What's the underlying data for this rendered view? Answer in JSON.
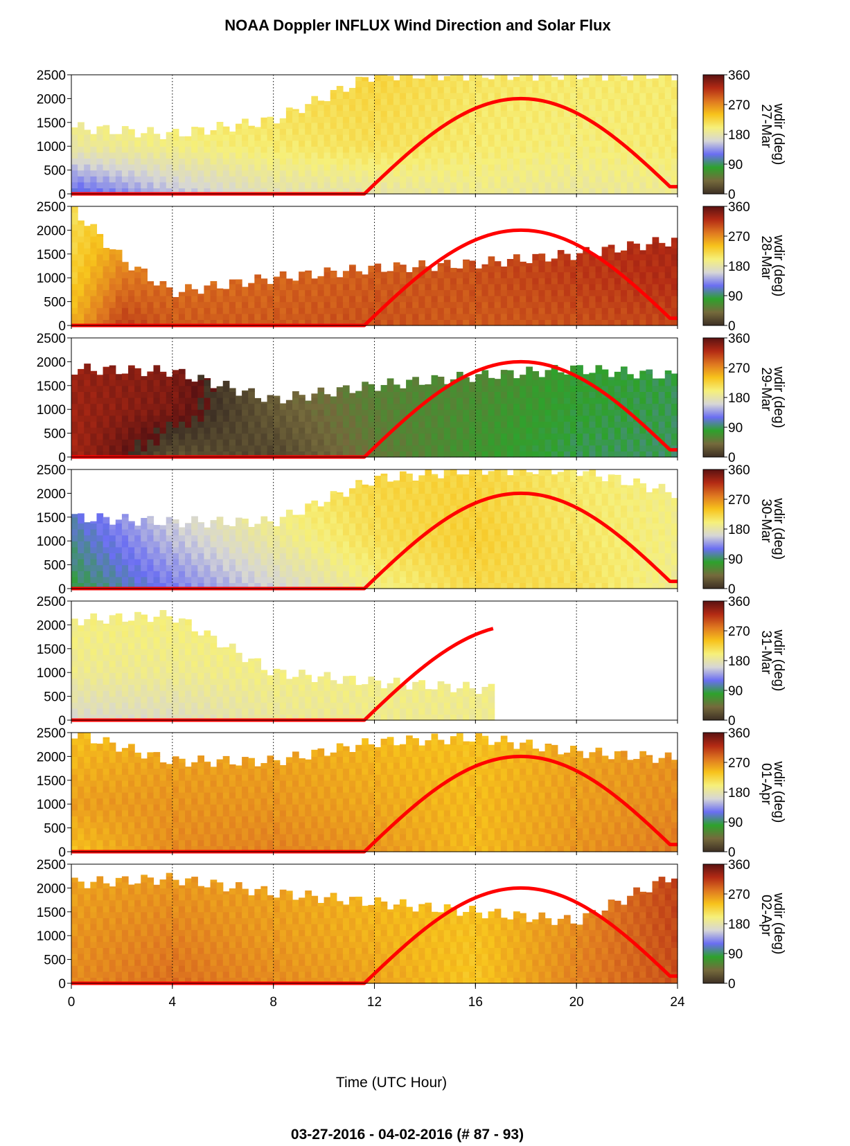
{
  "figure": {
    "title": "NOAA Doppler INFLUX Wind Direction and Solar Flux",
    "footer": "03-27-2016 - 04-02-2016   (# 87 - 93)"
  },
  "chart_data": {
    "type": "heatmap",
    "title": "NOAA Doppler INFLUX Wind Direction and Solar Flux",
    "xlabel": "Time (UTC Hour)",
    "xlim": [
      0,
      24
    ],
    "xticks": [
      "0",
      "4",
      "8",
      "12",
      "16",
      "20",
      "24"
    ],
    "ylim": [
      0,
      2500
    ],
    "yticks": [
      "0",
      "500",
      "1000",
      "1500",
      "2000",
      "2500"
    ],
    "colorbar": {
      "label": "wdir (deg)",
      "ticks": [
        "0",
        "90",
        "180",
        "270",
        "360"
      ],
      "range": [
        0,
        360
      ],
      "stops": [
        "#3d2f24",
        "#756a3c",
        "#2ea22c",
        "#6a6ef2",
        "#d6d6d6",
        "#f6f07a",
        "#f7c31c",
        "#df7820",
        "#b32a14",
        "#5a1212"
      ]
    },
    "solar_flux_color": "#ff0000",
    "solar_flux_curve": {
      "rise_hour": 11.6,
      "peak_hour": 17.8,
      "set_hour": 24.0,
      "peak_height": 2000
    },
    "panels": [
      {
        "date": "27-Mar",
        "max_hour": 24,
        "wdir_profile": [
          {
            "hour": 0,
            "low": 110,
            "mid": 185,
            "top": 210,
            "top_height": 1400
          },
          {
            "hour": 4,
            "low": 150,
            "mid": 195,
            "top": 215,
            "top_height": 1250
          },
          {
            "hour": 8,
            "low": 175,
            "mid": 205,
            "top": 220,
            "top_height": 1550
          },
          {
            "hour": 12,
            "low": 180,
            "mid": 215,
            "top": 225,
            "top_height": 2500
          },
          {
            "hour": 16,
            "low": 190,
            "mid": 205,
            "top": 210,
            "top_height": 2500
          },
          {
            "hour": 20,
            "low": 185,
            "mid": 200,
            "top": 205,
            "top_height": 2500
          },
          {
            "hour": 24,
            "low": 190,
            "mid": 205,
            "top": 205,
            "top_height": 2500
          }
        ]
      },
      {
        "date": "28-Mar",
        "max_hour": 24,
        "wdir_profile": [
          {
            "hour": 0,
            "low": 250,
            "mid": 230,
            "top": 215,
            "top_height": 2500
          },
          {
            "hour": 2,
            "low": 310,
            "mid": 280,
            "top": 235,
            "top_height": 1400
          },
          {
            "hour": 4,
            "low": 295,
            "mid": 285,
            "top": 280,
            "top_height": 700
          },
          {
            "hour": 8,
            "low": 295,
            "mid": 290,
            "top": 285,
            "top_height": 1000
          },
          {
            "hour": 12,
            "low": 300,
            "mid": 295,
            "top": 290,
            "top_height": 1200
          },
          {
            "hour": 16,
            "low": 295,
            "mid": 300,
            "top": 305,
            "top_height": 1300
          },
          {
            "hour": 20,
            "low": 300,
            "mid": 310,
            "top": 320,
            "top_height": 1500
          },
          {
            "hour": 24,
            "low": 305,
            "mid": 320,
            "top": 330,
            "top_height": 1800
          }
        ]
      },
      {
        "date": "29-Mar",
        "max_hour": 24,
        "wdir_profile": [
          {
            "hour": 0,
            "low": 325,
            "mid": 330,
            "top": 335,
            "top_height": 1850
          },
          {
            "hour": 4,
            "low": 25,
            "mid": 345,
            "top": 340,
            "top_height": 1800
          },
          {
            "hour": 8,
            "low": 15,
            "mid": 30,
            "top": 45,
            "top_height": 1200
          },
          {
            "hour": 12,
            "low": 50,
            "mid": 55,
            "top": 60,
            "top_height": 1500
          },
          {
            "hour": 16,
            "low": 70,
            "mid": 65,
            "top": 55,
            "top_height": 1700
          },
          {
            "hour": 20,
            "low": 88,
            "mid": 80,
            "top": 75,
            "top_height": 1850
          },
          {
            "hour": 24,
            "low": 90,
            "mid": 88,
            "top": 85,
            "top_height": 1700
          }
        ]
      },
      {
        "date": "30-Mar",
        "max_hour": 24,
        "wdir_profile": [
          {
            "hour": 0,
            "low": 85,
            "mid": 100,
            "top": 130,
            "top_height": 1500
          },
          {
            "hour": 4,
            "low": 125,
            "mid": 150,
            "top": 180,
            "top_height": 1400
          },
          {
            "hour": 8,
            "low": 160,
            "mid": 185,
            "top": 210,
            "top_height": 1400
          },
          {
            "hour": 12,
            "low": 195,
            "mid": 215,
            "top": 225,
            "top_height": 2300
          },
          {
            "hour": 16,
            "low": 220,
            "mid": 230,
            "top": 225,
            "top_height": 2500
          },
          {
            "hour": 20,
            "low": 215,
            "mid": 210,
            "top": 205,
            "top_height": 2500
          },
          {
            "hour": 24,
            "low": 190,
            "mid": 195,
            "top": 195,
            "top_height": 2000
          }
        ]
      },
      {
        "date": "31-Mar",
        "max_hour": 16.7,
        "wdir_profile": [
          {
            "hour": 0,
            "low": 165,
            "mid": 190,
            "top": 200,
            "top_height": 2100
          },
          {
            "hour": 4,
            "low": 170,
            "mid": 190,
            "top": 200,
            "top_height": 2200
          },
          {
            "hour": 8,
            "low": 185,
            "mid": 195,
            "top": 205,
            "top_height": 1000
          },
          {
            "hour": 12,
            "low": 190,
            "mid": 195,
            "top": 200,
            "top_height": 800
          },
          {
            "hour": 16.7,
            "low": 190,
            "mid": 195,
            "top": 195,
            "top_height": 650
          }
        ]
      },
      {
        "date": "01-Apr",
        "max_hour": 24,
        "wdir_profile": [
          {
            "hour": 0,
            "low": 240,
            "mid": 260,
            "top": 240,
            "top_height": 2500
          },
          {
            "hour": 4,
            "low": 270,
            "mid": 265,
            "top": 255,
            "top_height": 1900
          },
          {
            "hour": 8,
            "low": 275,
            "mid": 265,
            "top": 255,
            "top_height": 1900
          },
          {
            "hour": 12,
            "low": 265,
            "mid": 255,
            "top": 245,
            "top_height": 2300
          },
          {
            "hour": 16,
            "low": 245,
            "mid": 245,
            "top": 240,
            "top_height": 2400
          },
          {
            "hour": 20,
            "low": 265,
            "mid": 260,
            "top": 255,
            "top_height": 2100
          },
          {
            "hour": 24,
            "low": 280,
            "mid": 270,
            "top": 265,
            "top_height": 1950
          }
        ]
      },
      {
        "date": "02-Apr",
        "max_hour": 24,
        "wdir_profile": [
          {
            "hour": 0,
            "low": 270,
            "mid": 265,
            "top": 255,
            "top_height": 2100
          },
          {
            "hour": 4,
            "low": 285,
            "mid": 275,
            "top": 260,
            "top_height": 2200
          },
          {
            "hour": 8,
            "low": 270,
            "mid": 262,
            "top": 255,
            "top_height": 1900
          },
          {
            "hour": 12,
            "low": 258,
            "mid": 250,
            "top": 245,
            "top_height": 1700
          },
          {
            "hour": 16,
            "low": 238,
            "mid": 240,
            "top": 245,
            "top_height": 1500
          },
          {
            "hour": 20,
            "low": 275,
            "mid": 270,
            "top": 265,
            "top_height": 1300
          },
          {
            "hour": 24,
            "low": 300,
            "mid": 305,
            "top": 310,
            "top_height": 2300
          }
        ]
      }
    ]
  }
}
